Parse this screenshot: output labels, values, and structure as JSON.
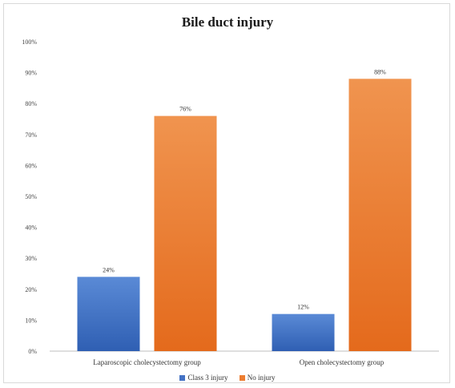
{
  "chart_data": {
    "type": "bar",
    "title": "Bile duct injury",
    "categories": [
      "Laparoscopic cholecystectomy group",
      "Open cholecystectomy group"
    ],
    "series": [
      {
        "name": "Class 3 injury",
        "values": [
          24,
          12
        ],
        "labels": [
          "24%",
          "12%"
        ],
        "color": "#4472c4"
      },
      {
        "name": "No injury",
        "values": [
          76,
          88
        ],
        "labels": [
          "76%",
          "88%"
        ],
        "color": "#ed7d31"
      }
    ],
    "ylim": [
      0,
      100
    ],
    "yticks": [
      "0%",
      "10%",
      "20%",
      "30%",
      "40%",
      "50%",
      "60%",
      "70%",
      "80%",
      "90%",
      "100%"
    ],
    "grid": false,
    "legend": "bottom"
  }
}
